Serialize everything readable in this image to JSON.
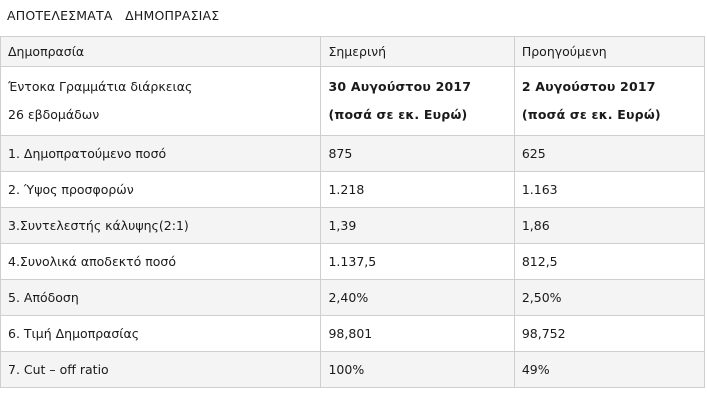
{
  "title": "ΑΠΟΤΕΛΕΣΜΑΤΑ   ΔΗΜΟΠΡΑΣΙΑΣ",
  "table": {
    "headers": [
      "Δημοπρασία",
      "Σημερινή",
      "Προηγούμενη"
    ],
    "intro": {
      "label_line1": "Έντοκα Γραμμάτια διάρκειας",
      "label_line2": "26 εβδομάδων",
      "current_date": "30 Αυγούστου 2017",
      "current_unit": "(ποσά σε εκ. Ευρώ)",
      "previous_date": "2 Αυγούστου 2017",
      "previous_unit": "(ποσά σε εκ. Ευρώ)"
    },
    "rows": [
      {
        "label": "1. Δημοπρατούμενο ποσό",
        "current": "875",
        "previous": "625"
      },
      {
        "label": "2. Ύψος προσφορών",
        "current": "1.218",
        "previous": "1.163"
      },
      {
        "label": "3.Συντελεστής κάλυψης(2:1)",
        "current": "1,39",
        "previous": "1,86"
      },
      {
        "label": "4.Συνολικά αποδεκτό ποσό",
        "current": "1.137,5",
        "previous": "812,5"
      },
      {
        "label": "5. Απόδοση",
        "current": "2,40%",
        "previous": "2,50%"
      },
      {
        "label": "6. Τιμή Δημοπρασίας",
        "current": "98,801",
        "previous": "98,752"
      },
      {
        "label": "7. Cut – off ratio",
        "current": "100%",
        "previous": "49%"
      }
    ]
  },
  "colors": {
    "border": "#cfcfcf",
    "row_stripe": "#f4f4f4",
    "text": "#1a1a1a"
  }
}
